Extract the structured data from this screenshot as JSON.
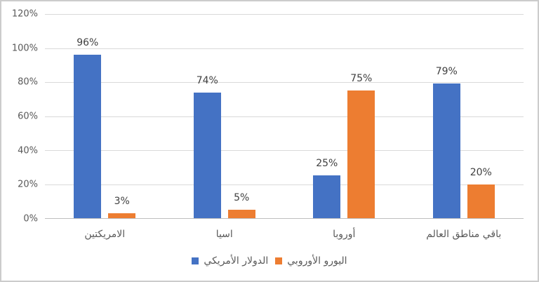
{
  "chart_data": {
    "type": "bar",
    "title": "",
    "xlabel": "",
    "ylabel": "",
    "categories": [
      "الامريكتين",
      "اسيا",
      "أوروبا",
      "باقي مناطق العالم"
    ],
    "categories_visual_order": "left-to-right",
    "series": [
      {
        "name": "الدولار الأمريكي",
        "color": "#4472C4",
        "values": [
          96,
          74,
          25,
          79
        ],
        "labels": [
          "96%",
          "74%",
          "25%",
          "79%"
        ]
      },
      {
        "name": "اليورو الأوروبي",
        "color": "#ED7D31",
        "values": [
          3,
          5,
          75,
          20
        ],
        "labels": [
          "3%",
          "5%",
          "75%",
          "20%"
        ]
      }
    ],
    "ylim": [
      0,
      120
    ],
    "y_step": 20,
    "y_ticks": [
      "0%",
      "20%",
      "40%",
      "60%",
      "80%",
      "100%",
      "120%"
    ],
    "grid": true,
    "legend_position": "bottom",
    "colors": {
      "series_blue": "#4472C4",
      "series_orange": "#ED7D31",
      "gridline": "#D9D9D9",
      "axis_line": "#BFBFBF",
      "tick_text": "#595959",
      "data_label_text": "#404040"
    }
  }
}
